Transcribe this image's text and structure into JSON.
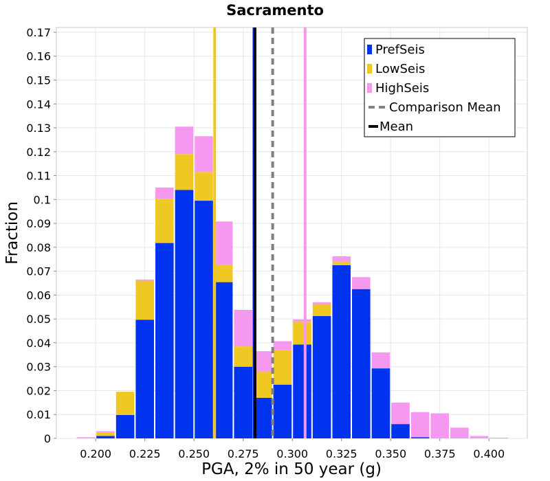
{
  "chart_data": {
    "type": "bar",
    "stacked": true,
    "title": "Sacramento",
    "xlabel": "PGA, 2% in 50 year (g)",
    "ylabel": "Fraction",
    "xlim": [
      0.18,
      0.4195
    ],
    "ylim": [
      0,
      0.172
    ],
    "x_ticks": [
      "0.200",
      "0.225",
      "0.250",
      "0.275",
      "0.300",
      "0.325",
      "0.350",
      "0.375",
      "0.400"
    ],
    "y_ticks": [
      "0",
      "0.01",
      "0.02",
      "0.03",
      "0.04",
      "0.05",
      "0.06",
      "0.07",
      "0.08",
      "0.09",
      "0.1",
      "0.11",
      "0.12",
      "0.13",
      "0.14",
      "0.15",
      "0.16",
      "0.17"
    ],
    "grid": true,
    "legend_position": "top-right",
    "bin_width": 0.01,
    "bin_centers": [
      0.195,
      0.205,
      0.215,
      0.225,
      0.235,
      0.245,
      0.255,
      0.265,
      0.275,
      0.285,
      0.295,
      0.305,
      0.315,
      0.325,
      0.335,
      0.345,
      0.355,
      0.365,
      0.375,
      0.385,
      0.395,
      0.405
    ],
    "series": [
      {
        "name": "PrefSeis",
        "color": "#0033ee",
        "values": [
          0.0,
          0.001,
          0.0098,
          0.0497,
          0.0818,
          0.104,
          0.0995,
          0.0654,
          0.03,
          0.017,
          0.0225,
          0.0393,
          0.0512,
          0.0725,
          0.0625,
          0.0293,
          0.006,
          0.0005,
          0.0,
          0.0,
          0.0,
          0.0
        ]
      },
      {
        "name": "LowSeis",
        "color": "#f0c823",
        "values": [
          0.0,
          0.0015,
          0.0097,
          0.0163,
          0.0185,
          0.015,
          0.012,
          0.0074,
          0.0085,
          0.011,
          0.0145,
          0.0095,
          0.005,
          0.0015,
          0.0,
          0.0,
          0.0,
          0.0,
          0.0,
          0.0,
          0.0,
          0.0
        ]
      },
      {
        "name": "HighSeis",
        "color": "#f598f0",
        "values": [
          0.0005,
          0.0005,
          0.0,
          0.0005,
          0.0047,
          0.0115,
          0.015,
          0.018,
          0.0153,
          0.0085,
          0.0037,
          0.001,
          0.0008,
          0.0022,
          0.005,
          0.0067,
          0.009,
          0.0105,
          0.0105,
          0.0045,
          0.001,
          0.0003
        ]
      }
    ],
    "vertical_lines": [
      {
        "name": "LowSeis mean",
        "x": 0.2605,
        "color": "#f0c823"
      },
      {
        "name": "HighSeis mean",
        "x": 0.3065,
        "color": "#f598f0"
      },
      {
        "name": "PrefSeis mean",
        "x": 0.2805,
        "color": "#0033ee"
      },
      {
        "name": "Mean",
        "x": 0.281,
        "color": "#000000"
      },
      {
        "name": "Comparison Mean",
        "x": 0.29,
        "color": "#808080",
        "dashed": true
      }
    ],
    "legend": [
      {
        "label": "PrefSeis",
        "kind": "box",
        "color": "#0033ee"
      },
      {
        "label": "LowSeis",
        "kind": "box",
        "color": "#f0c823"
      },
      {
        "label": "HighSeis",
        "kind": "box",
        "color": "#f598f0"
      },
      {
        "label": "Comparison Mean",
        "kind": "dashed-line",
        "color": "#808080"
      },
      {
        "label": "Mean",
        "kind": "line",
        "color": "#000000"
      }
    ]
  }
}
